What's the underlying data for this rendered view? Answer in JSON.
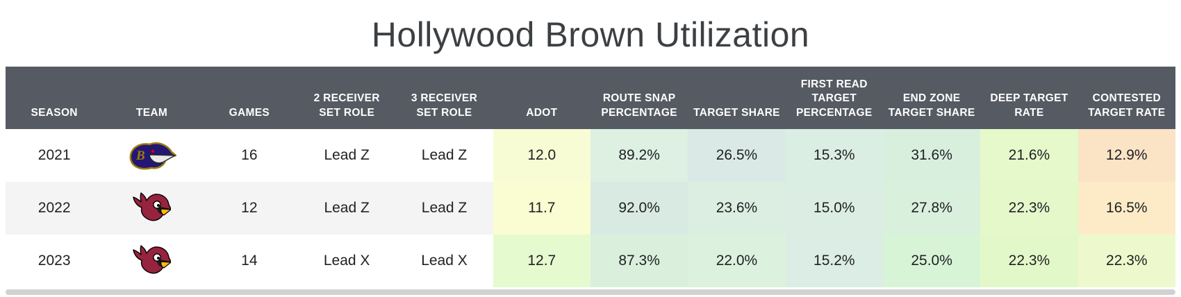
{
  "title": "Hollywood Brown Utilization",
  "colors": {
    "header_bg": "#565a62",
    "header_text": "#ffffff",
    "row_alt_bg": "#f4f4f4",
    "body_text": "#202124",
    "title_text": "#3c4043",
    "scrollbar": "#d2d2d2",
    "ravens_purple": "#241773",
    "ravens_gold": "#9e7c0c",
    "cardinals_red": "#97233f",
    "cardinals_yellow": "#ffb612"
  },
  "table": {
    "columns": [
      {
        "key": "season",
        "label": "SEASON"
      },
      {
        "key": "team",
        "label": "TEAM"
      },
      {
        "key": "games",
        "label": "GAMES"
      },
      {
        "key": "two-receiver-set-role",
        "label": "2 RECEIVER SET ROLE"
      },
      {
        "key": "three-receiver-set-role",
        "label": "3 RECEIVER SET ROLE"
      },
      {
        "key": "adot",
        "label": "ADOT"
      },
      {
        "key": "route-snap-percentage",
        "label": "ROUTE SNAP PERCENTAGE"
      },
      {
        "key": "target-share",
        "label": "TARGET SHARE"
      },
      {
        "key": "first-read-target-percentage",
        "label": "FIRST READ TARGET PERCENTAGE"
      },
      {
        "key": "end-zone-target-share",
        "label": "END ZONE TARGET SHARE"
      },
      {
        "key": "deep-target-rate",
        "label": "DEEP TARGET RATE"
      },
      {
        "key": "contested-target-rate",
        "label": "CONTESTED TARGET RATE"
      }
    ],
    "rows": [
      {
        "season": "2021",
        "team_logo": "ravens-logo",
        "games": "16",
        "two_receiver_role": "Lead Z",
        "three_receiver_role": "Lead Z",
        "metrics": [
          {
            "key": "adot",
            "value": "12.0",
            "bg": "#f8fcd4"
          },
          {
            "key": "route-snap-percentage",
            "value": "89.2%",
            "bg": "#ddf0e2"
          },
          {
            "key": "target-share",
            "value": "26.5%",
            "bg": "#dae9e5"
          },
          {
            "key": "first-read-target-percentage",
            "value": "15.3%",
            "bg": "#dbeee4"
          },
          {
            "key": "end-zone-target-share",
            "value": "31.6%",
            "bg": "#d9efde"
          },
          {
            "key": "deep-target-rate",
            "value": "21.6%",
            "bg": "#e5f9cb"
          },
          {
            "key": "contested-target-rate",
            "value": "12.9%",
            "bg": "#fbe3c5"
          }
        ]
      },
      {
        "season": "2022",
        "team_logo": "cardinals-logo",
        "games": "12",
        "two_receiver_role": "Lead Z",
        "three_receiver_role": "Lead Z",
        "metrics": [
          {
            "key": "adot",
            "value": "11.7",
            "bg": "#fafcd2"
          },
          {
            "key": "route-snap-percentage",
            "value": "92.0%",
            "bg": "#d9eae2"
          },
          {
            "key": "target-share",
            "value": "23.6%",
            "bg": "#dbeee1"
          },
          {
            "key": "first-read-target-percentage",
            "value": "15.0%",
            "bg": "#dceee3"
          },
          {
            "key": "end-zone-target-share",
            "value": "27.8%",
            "bg": "#d9f0dd"
          },
          {
            "key": "deep-target-rate",
            "value": "22.3%",
            "bg": "#e4f8ca"
          },
          {
            "key": "contested-target-rate",
            "value": "16.5%",
            "bg": "#fcebc6"
          }
        ]
      },
      {
        "season": "2023",
        "team_logo": "cardinals-logo",
        "games": "14",
        "two_receiver_role": "Lead X",
        "three_receiver_role": "Lead X",
        "metrics": [
          {
            "key": "adot",
            "value": "12.7",
            "bg": "#e6facf"
          },
          {
            "key": "route-snap-percentage",
            "value": "87.3%",
            "bg": "#daf0dc"
          },
          {
            "key": "target-share",
            "value": "22.0%",
            "bg": "#dcf1de"
          },
          {
            "key": "first-read-target-percentage",
            "value": "15.2%",
            "bg": "#dbede4"
          },
          {
            "key": "end-zone-target-share",
            "value": "25.0%",
            "bg": "#d7f4d6"
          },
          {
            "key": "deep-target-rate",
            "value": "22.3%",
            "bg": "#e3f8c9"
          },
          {
            "key": "contested-target-rate",
            "value": "22.3%",
            "bg": "#edf9cc"
          }
        ]
      }
    ]
  },
  "chart_data": {
    "type": "table",
    "title": "Hollywood Brown Utilization",
    "columns": [
      "SEASON",
      "TEAM",
      "GAMES",
      "2 RECEIVER SET ROLE",
      "3 RECEIVER SET ROLE",
      "ADOT",
      "ROUTE SNAP PERCENTAGE",
      "TARGET SHARE",
      "FIRST READ TARGET PERCENTAGE",
      "END ZONE TARGET SHARE",
      "DEEP TARGET RATE",
      "CONTESTED TARGET RATE"
    ],
    "rows": [
      [
        "2021",
        "Ravens",
        "16",
        "Lead Z",
        "Lead Z",
        "12.0",
        "89.2%",
        "26.5%",
        "15.3%",
        "31.6%",
        "21.6%",
        "12.9%"
      ],
      [
        "2022",
        "Cardinals",
        "12",
        "Lead Z",
        "Lead Z",
        "11.7",
        "92.0%",
        "23.6%",
        "15.0%",
        "27.8%",
        "22.3%",
        "16.5%"
      ],
      [
        "2023",
        "Cardinals",
        "14",
        "Lead X",
        "Lead X",
        "12.7",
        "87.3%",
        "22.0%",
        "15.2%",
        "25.0%",
        "22.3%",
        "22.3%"
      ]
    ]
  }
}
